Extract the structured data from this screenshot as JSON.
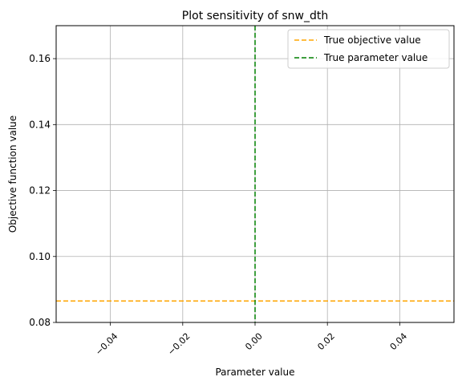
{
  "chart_data": {
    "type": "line",
    "title": "Plot sensitivity of snw_dth",
    "xlabel": "Parameter value",
    "ylabel": "Objective function value",
    "xlim": [
      -0.055,
      0.055
    ],
    "ylim": [
      0.08,
      0.17
    ],
    "x_ticks": [
      -0.04,
      -0.02,
      0.0,
      0.02,
      0.04
    ],
    "x_tick_labels": [
      "−0.04",
      "−0.02",
      "0.00",
      "0.02",
      "0.04"
    ],
    "x_tick_rotation_deg": 45,
    "y_ticks": [
      0.08,
      0.1,
      0.12,
      0.14,
      0.16
    ],
    "y_tick_labels": [
      "0.08",
      "0.10",
      "0.12",
      "0.14",
      "0.16"
    ],
    "grid": true,
    "legend_position": "top-right",
    "series": [
      {
        "name": "True objective value",
        "orientation": "horizontal",
        "value": 0.0865,
        "color": "#ffa500",
        "style": "dashed"
      },
      {
        "name": "True parameter value",
        "orientation": "vertical",
        "value": 0.0,
        "color": "#008000",
        "style": "dashed"
      }
    ]
  }
}
